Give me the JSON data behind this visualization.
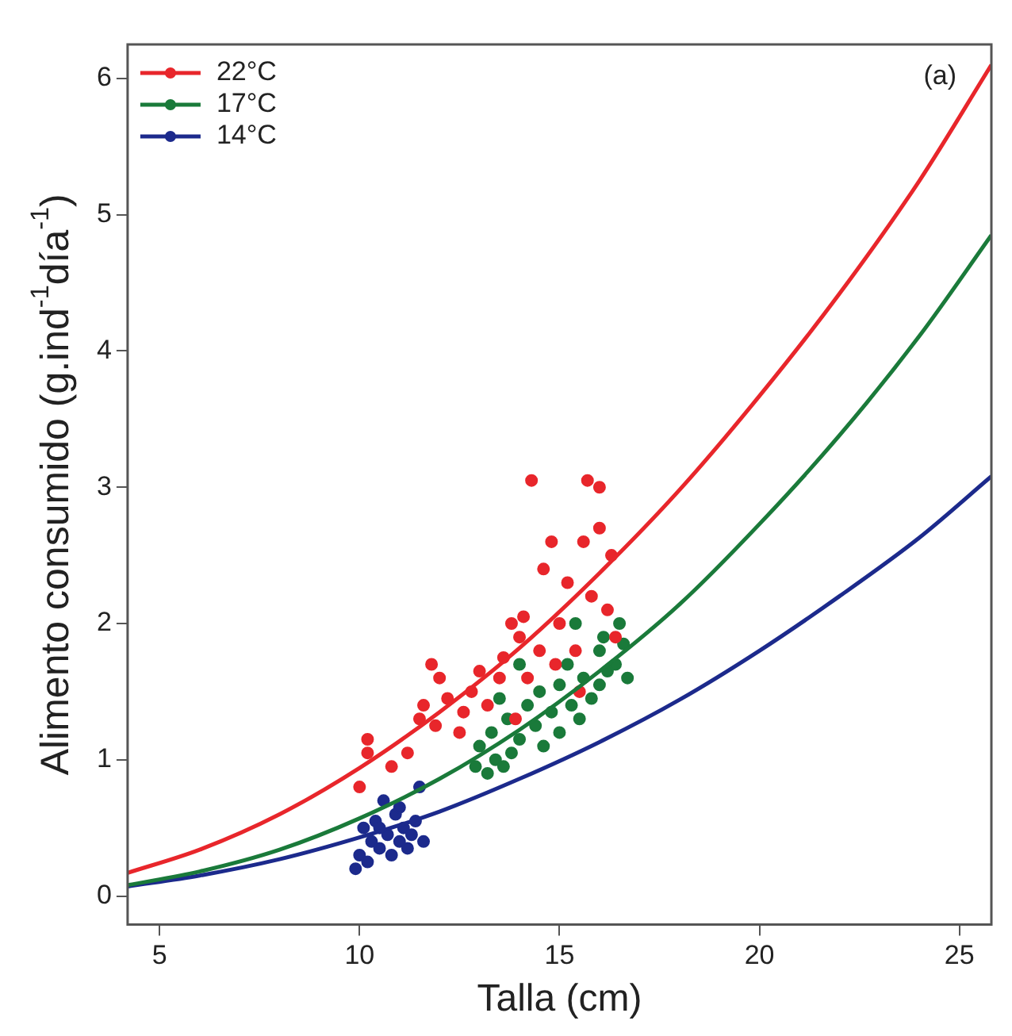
{
  "chart_data": {
    "type": "scatter",
    "xlabel": "Talla (cm)",
    "ylabel": "Alimento consumido (g.ind$^{-1}$día$^{-1}$)",
    "annotations": [
      "(a)"
    ],
    "xlim": [
      4.2,
      25.8
    ],
    "xticks": [
      5,
      10,
      15,
      20,
      25
    ],
    "ylim": [
      -0.21,
      6.25
    ],
    "yticks": [
      0,
      1,
      2,
      3,
      4,
      5,
      6
    ],
    "legend": "top left",
    "series": [
      {
        "name": "22°C",
        "type": "line",
        "marker": "none",
        "color": "#e8262b",
        "x": [
          4.2,
          6,
          8,
          10,
          12,
          14,
          16,
          18,
          20,
          22,
          24,
          25.8
        ],
        "values": [
          0.17,
          0.34,
          0.6,
          0.94,
          1.35,
          1.82,
          2.37,
          2.98,
          3.67,
          4.42,
          5.25,
          6.1
        ]
      },
      {
        "name": "17°C",
        "type": "line",
        "marker": "none",
        "color": "#1a7a3a",
        "x": [
          4.2,
          6,
          8,
          10,
          12,
          14,
          16,
          18,
          20,
          22,
          24,
          25.8
        ],
        "values": [
          0.08,
          0.18,
          0.34,
          0.57,
          0.86,
          1.22,
          1.65,
          2.14,
          2.73,
          3.38,
          4.11,
          4.85
        ]
      },
      {
        "name": "14°C",
        "type": "line",
        "marker": "none",
        "color": "#1c2a8c",
        "x": [
          4.2,
          6,
          8,
          10,
          12,
          14,
          16,
          18,
          20,
          22,
          24,
          25.8
        ],
        "values": [
          0.07,
          0.15,
          0.27,
          0.43,
          0.62,
          0.86,
          1.13,
          1.44,
          1.8,
          2.2,
          2.63,
          3.08
        ]
      },
      {
        "type": "scatter",
        "marker": "circle",
        "color": "#e8262b",
        "x": [
          10.0,
          10.2,
          10.2,
          10.8,
          11.2,
          11.5,
          11.6,
          11.8,
          12.0,
          11.9,
          12.2,
          12.5,
          12.8,
          13.0,
          13.2,
          13.5,
          13.6,
          13.8,
          14.0,
          14.1,
          14.3,
          14.2,
          14.5,
          14.6,
          14.8,
          15.0,
          15.2,
          15.4,
          15.6,
          15.7,
          15.8,
          16.0,
          16.0,
          16.2,
          16.3,
          16.4,
          15.5,
          14.9,
          13.9,
          12.6
        ],
        "values": [
          0.8,
          1.15,
          1.05,
          0.95,
          1.05,
          1.3,
          1.4,
          1.7,
          1.6,
          1.25,
          1.45,
          1.2,
          1.5,
          1.65,
          1.4,
          1.6,
          1.75,
          2.0,
          1.9,
          2.05,
          3.05,
          1.6,
          1.8,
          2.4,
          2.6,
          2.0,
          2.3,
          1.8,
          2.6,
          3.05,
          2.2,
          3.0,
          2.7,
          2.1,
          2.5,
          1.9,
          1.5,
          1.7,
          1.3,
          1.35
        ]
      },
      {
        "type": "scatter",
        "marker": "circle",
        "color": "#1a7a3a",
        "x": [
          12.9,
          13.0,
          13.2,
          13.4,
          13.6,
          13.8,
          13.3,
          13.7,
          14.0,
          14.2,
          14.4,
          14.5,
          14.6,
          14.8,
          15.0,
          15.0,
          15.2,
          15.3,
          15.5,
          15.6,
          15.8,
          16.0,
          16.0,
          16.2,
          16.1,
          16.4,
          16.6,
          16.7,
          15.4,
          14.0,
          13.5,
          16.5
        ],
        "values": [
          0.95,
          1.1,
          0.9,
          1.0,
          0.95,
          1.05,
          1.2,
          1.3,
          1.15,
          1.4,
          1.25,
          1.5,
          1.1,
          1.35,
          1.55,
          1.2,
          1.7,
          1.4,
          1.3,
          1.6,
          1.45,
          1.8,
          1.55,
          1.65,
          1.9,
          1.7,
          1.85,
          1.6,
          2.0,
          1.7,
          1.45,
          2.0
        ]
      },
      {
        "type": "scatter",
        "marker": "circle",
        "color": "#1c2a8c",
        "x": [
          9.9,
          10.0,
          10.1,
          10.2,
          10.3,
          10.4,
          10.5,
          10.6,
          10.7,
          10.8,
          10.9,
          11.0,
          11.1,
          11.2,
          11.3,
          11.4,
          11.5,
          11.6,
          11.0,
          10.5
        ],
        "values": [
          0.2,
          0.3,
          0.5,
          0.25,
          0.4,
          0.55,
          0.35,
          0.7,
          0.45,
          0.3,
          0.6,
          0.4,
          0.5,
          0.35,
          0.45,
          0.55,
          0.8,
          0.4,
          0.65,
          0.5
        ]
      }
    ]
  }
}
